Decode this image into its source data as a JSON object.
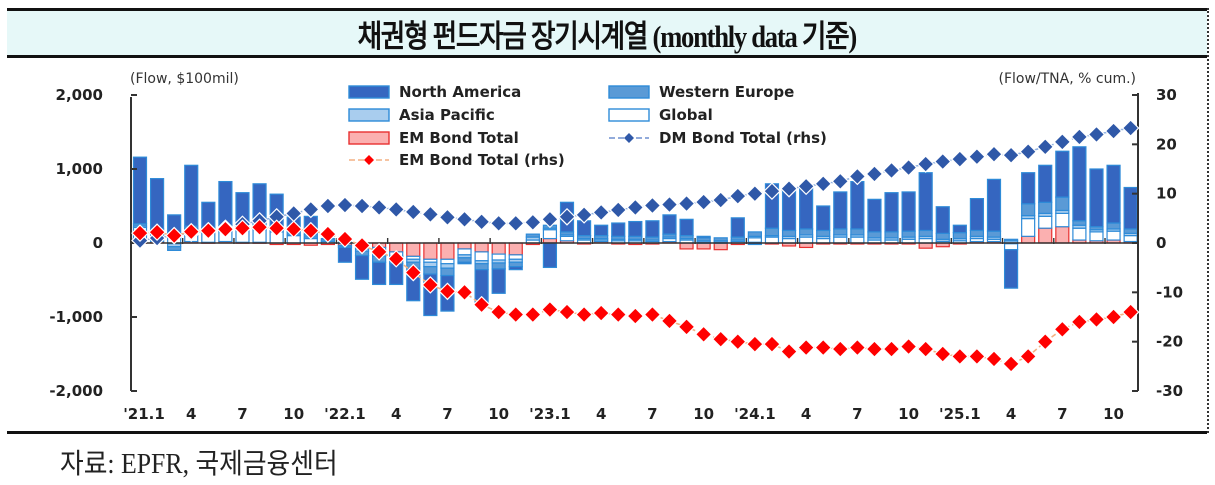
{
  "title": "채권형 펀드자금 장기시계열 (monthly data 기준)",
  "source": "자료: EPFR,  국제금융센터",
  "colors": {
    "north_america": "#3566c0",
    "western_europe": "#5a9ad6",
    "asia_pacific": "#a9cdee",
    "global": "#ffffff",
    "bar_border": "#2e8bd8",
    "em_bar": "#fbb0b0",
    "em_bar_border": "#e83030",
    "dm_line": "#2f58a8",
    "em_line": "#ff0000",
    "em_line_dash": "#f4b183",
    "title_bg": "#e6f8f8"
  },
  "chart_data": {
    "type": "bar",
    "title": "채권형 펀드자금 장기시계열 (monthly data 기준)",
    "left_axis_unit": "(Flow, $100mil)",
    "right_axis_unit": "(Flow/TNA, % cum.)",
    "ylim_left": [
      -2000,
      2000
    ],
    "yticks_left": [
      2000,
      1000,
      0,
      -1000,
      -2000
    ],
    "ytick_labels_left": [
      "2,000",
      "1,000",
      "0",
      "-1,000",
      "-2,000"
    ],
    "ylim_right": [
      -30,
      30
    ],
    "yticks_right": [
      30,
      20,
      10,
      0,
      -10,
      -20,
      -30
    ],
    "ytick_labels_right": [
      "30",
      "20",
      "10",
      "0",
      "-10",
      "-20",
      "-30"
    ],
    "x_tick_labels": [
      "'21.1",
      "4",
      "7",
      "10",
      "'22.1",
      "4",
      "7",
      "10",
      "'23.1",
      "4",
      "7",
      "10",
      "'24.1",
      "4",
      "7",
      "10",
      "'25.1",
      "4",
      "7",
      "10"
    ],
    "x_tick_every": 3,
    "categories": [
      "2021-01",
      "2021-02",
      "2021-03",
      "2021-04",
      "2021-05",
      "2021-06",
      "2021-07",
      "2021-08",
      "2021-09",
      "2021-10",
      "2021-11",
      "2021-12",
      "2022-01",
      "2022-02",
      "2022-03",
      "2022-04",
      "2022-05",
      "2022-06",
      "2022-07",
      "2022-08",
      "2022-09",
      "2022-10",
      "2022-11",
      "2022-12",
      "2023-01",
      "2023-02",
      "2023-03",
      "2023-04",
      "2023-05",
      "2023-06",
      "2023-07",
      "2023-08",
      "2023-09",
      "2023-10",
      "2023-11",
      "2023-12",
      "2024-01",
      "2024-02",
      "2024-03",
      "2024-04",
      "2024-05",
      "2024-06",
      "2024-07",
      "2024-08",
      "2024-09",
      "2024-10",
      "2024-11",
      "2024-12",
      "2025-01",
      "2025-02",
      "2025-03",
      "2025-04",
      "2025-05",
      "2025-06",
      "2025-07",
      "2025-08",
      "2025-09",
      "2025-10",
      "2025-11"
    ],
    "legend": [
      {
        "name": "North America",
        "kind": "bar",
        "key": "north_america"
      },
      {
        "name": "Western Europe",
        "kind": "bar",
        "key": "western_europe"
      },
      {
        "name": "Asia Pacific",
        "kind": "bar",
        "key": "asia_pacific"
      },
      {
        "name": "Global",
        "kind": "bar",
        "key": "global"
      },
      {
        "name": "EM Bond Total",
        "kind": "bar",
        "key": "em_bar"
      },
      {
        "name": "DM Bond Total (rhs)",
        "kind": "line",
        "key": "dm_line"
      },
      {
        "name": "EM Bond Total (rhs)",
        "kind": "line",
        "key": "em_line"
      }
    ],
    "series": [
      {
        "name": "EM Bond Total",
        "axis": "left",
        "type": "bar",
        "values": [
          10,
          20,
          -10,
          20,
          10,
          20,
          10,
          10,
          -20,
          -20,
          -30,
          -20,
          -30,
          -40,
          -60,
          -120,
          -180,
          -220,
          -220,
          -80,
          -120,
          -150,
          -160,
          -20,
          60,
          30,
          -10,
          20,
          -10,
          -20,
          -10,
          20,
          -80,
          -80,
          -90,
          -20,
          10,
          -10,
          -40,
          -60,
          -10,
          -10,
          -10,
          -10,
          -10,
          -10,
          -70,
          -50,
          -10,
          20,
          20,
          -10,
          90,
          200,
          220,
          40,
          30,
          40,
          20
        ]
      },
      {
        "name": "Global",
        "axis": "left",
        "type": "bar",
        "values": [
          200,
          120,
          120,
          150,
          150,
          140,
          180,
          170,
          150,
          100,
          60,
          20,
          10,
          -40,
          -80,
          -60,
          -40,
          -40,
          -60,
          -80,
          -120,
          -80,
          -60,
          40,
          120,
          60,
          40,
          20,
          30,
          30,
          20,
          40,
          40,
          10,
          10,
          20,
          60,
          80,
          60,
          80,
          60,
          80,
          80,
          40,
          40,
          50,
          60,
          20,
          30,
          40,
          30,
          -80,
          240,
          160,
          180,
          160,
          120,
          120,
          80
        ]
      },
      {
        "name": "Asia Pacific",
        "axis": "left",
        "type": "bar",
        "values": [
          20,
          20,
          -40,
          30,
          20,
          30,
          20,
          20,
          20,
          20,
          20,
          20,
          -10,
          -30,
          -40,
          -40,
          -40,
          -60,
          -60,
          -40,
          -40,
          -40,
          -40,
          40,
          20,
          20,
          20,
          20,
          20,
          20,
          20,
          20,
          20,
          20,
          20,
          20,
          20,
          20,
          30,
          30,
          30,
          30,
          30,
          30,
          30,
          30,
          30,
          30,
          30,
          30,
          30,
          30,
          40,
          40,
          40,
          40,
          30,
          30,
          30
        ]
      },
      {
        "name": "Western Europe",
        "axis": "left",
        "type": "bar",
        "values": [
          30,
          30,
          -50,
          30,
          30,
          40,
          30,
          40,
          30,
          30,
          30,
          20,
          -20,
          -60,
          -80,
          -60,
          -80,
          -100,
          -100,
          -60,
          -80,
          -80,
          -60,
          40,
          40,
          40,
          40,
          40,
          40,
          40,
          40,
          40,
          40,
          40,
          40,
          40,
          60,
          100,
          80,
          80,
          80,
          80,
          80,
          80,
          80,
          80,
          80,
          80,
          80,
          80,
          80,
          20,
          160,
          150,
          180,
          60,
          40,
          80,
          60
        ]
      },
      {
        "name": "North America",
        "axis": "left",
        "type": "bar",
        "values": [
          900,
          680,
          260,
          820,
          340,
          600,
          440,
          560,
          460,
          200,
          250,
          0,
          -200,
          -320,
          -300,
          -280,
          -440,
          -560,
          -480,
          -20,
          -440,
          -330,
          -40,
          0,
          -330,
          400,
          200,
          140,
          180,
          200,
          220,
          260,
          220,
          20,
          0,
          260,
          -20,
          600,
          560,
          590,
          330,
          500,
          640,
          440,
          530,
          530,
          780,
          360,
          100,
          430,
          700,
          -520,
          420,
          500,
          620,
          1000,
          780,
          780,
          560
        ]
      },
      {
        "name": "DM Bond Total (rhs)",
        "axis": "right",
        "type": "line",
        "values": [
          0.5,
          1.0,
          1.5,
          2.0,
          2.5,
          3.0,
          3.8,
          4.5,
          5.3,
          6.0,
          6.8,
          7.5,
          7.7,
          7.5,
          7.2,
          6.8,
          6.3,
          5.8,
          5.2,
          4.8,
          4.3,
          4.0,
          4.0,
          4.2,
          4.8,
          5.3,
          5.7,
          6.2,
          6.7,
          7.2,
          7.6,
          7.8,
          8.0,
          8.3,
          8.7,
          9.5,
          10.0,
          10.5,
          11.0,
          11.5,
          12.0,
          12.5,
          13.5,
          14.0,
          14.7,
          15.3,
          16.0,
          16.5,
          17.0,
          17.5,
          18.0,
          17.8,
          18.5,
          19.5,
          20.5,
          21.5,
          22.0,
          22.7,
          23.3
        ]
      },
      {
        "name": "EM Bond Total (rhs)",
        "axis": "right",
        "type": "line",
        "values": [
          2.0,
          2.2,
          1.5,
          2.3,
          2.5,
          2.8,
          3.0,
          3.2,
          3.0,
          2.8,
          2.5,
          1.8,
          0.8,
          -0.5,
          -1.8,
          -3.2,
          -6.0,
          -8.5,
          -9.8,
          -10.0,
          -12.5,
          -14.0,
          -14.5,
          -14.5,
          -13.5,
          -14.0,
          -14.5,
          -14.2,
          -14.5,
          -14.8,
          -14.5,
          -15.8,
          -17.0,
          -18.5,
          -19.5,
          -20.0,
          -20.5,
          -20.5,
          -22.0,
          -21.2,
          -21.2,
          -21.5,
          -21.2,
          -21.5,
          -21.5,
          -21.0,
          -21.5,
          -22.5,
          -23.0,
          -23.0,
          -23.5,
          -24.5,
          -23.0,
          -20.0,
          -17.5,
          -16.0,
          -15.5,
          -15.0,
          -14.0
        ]
      }
    ]
  }
}
